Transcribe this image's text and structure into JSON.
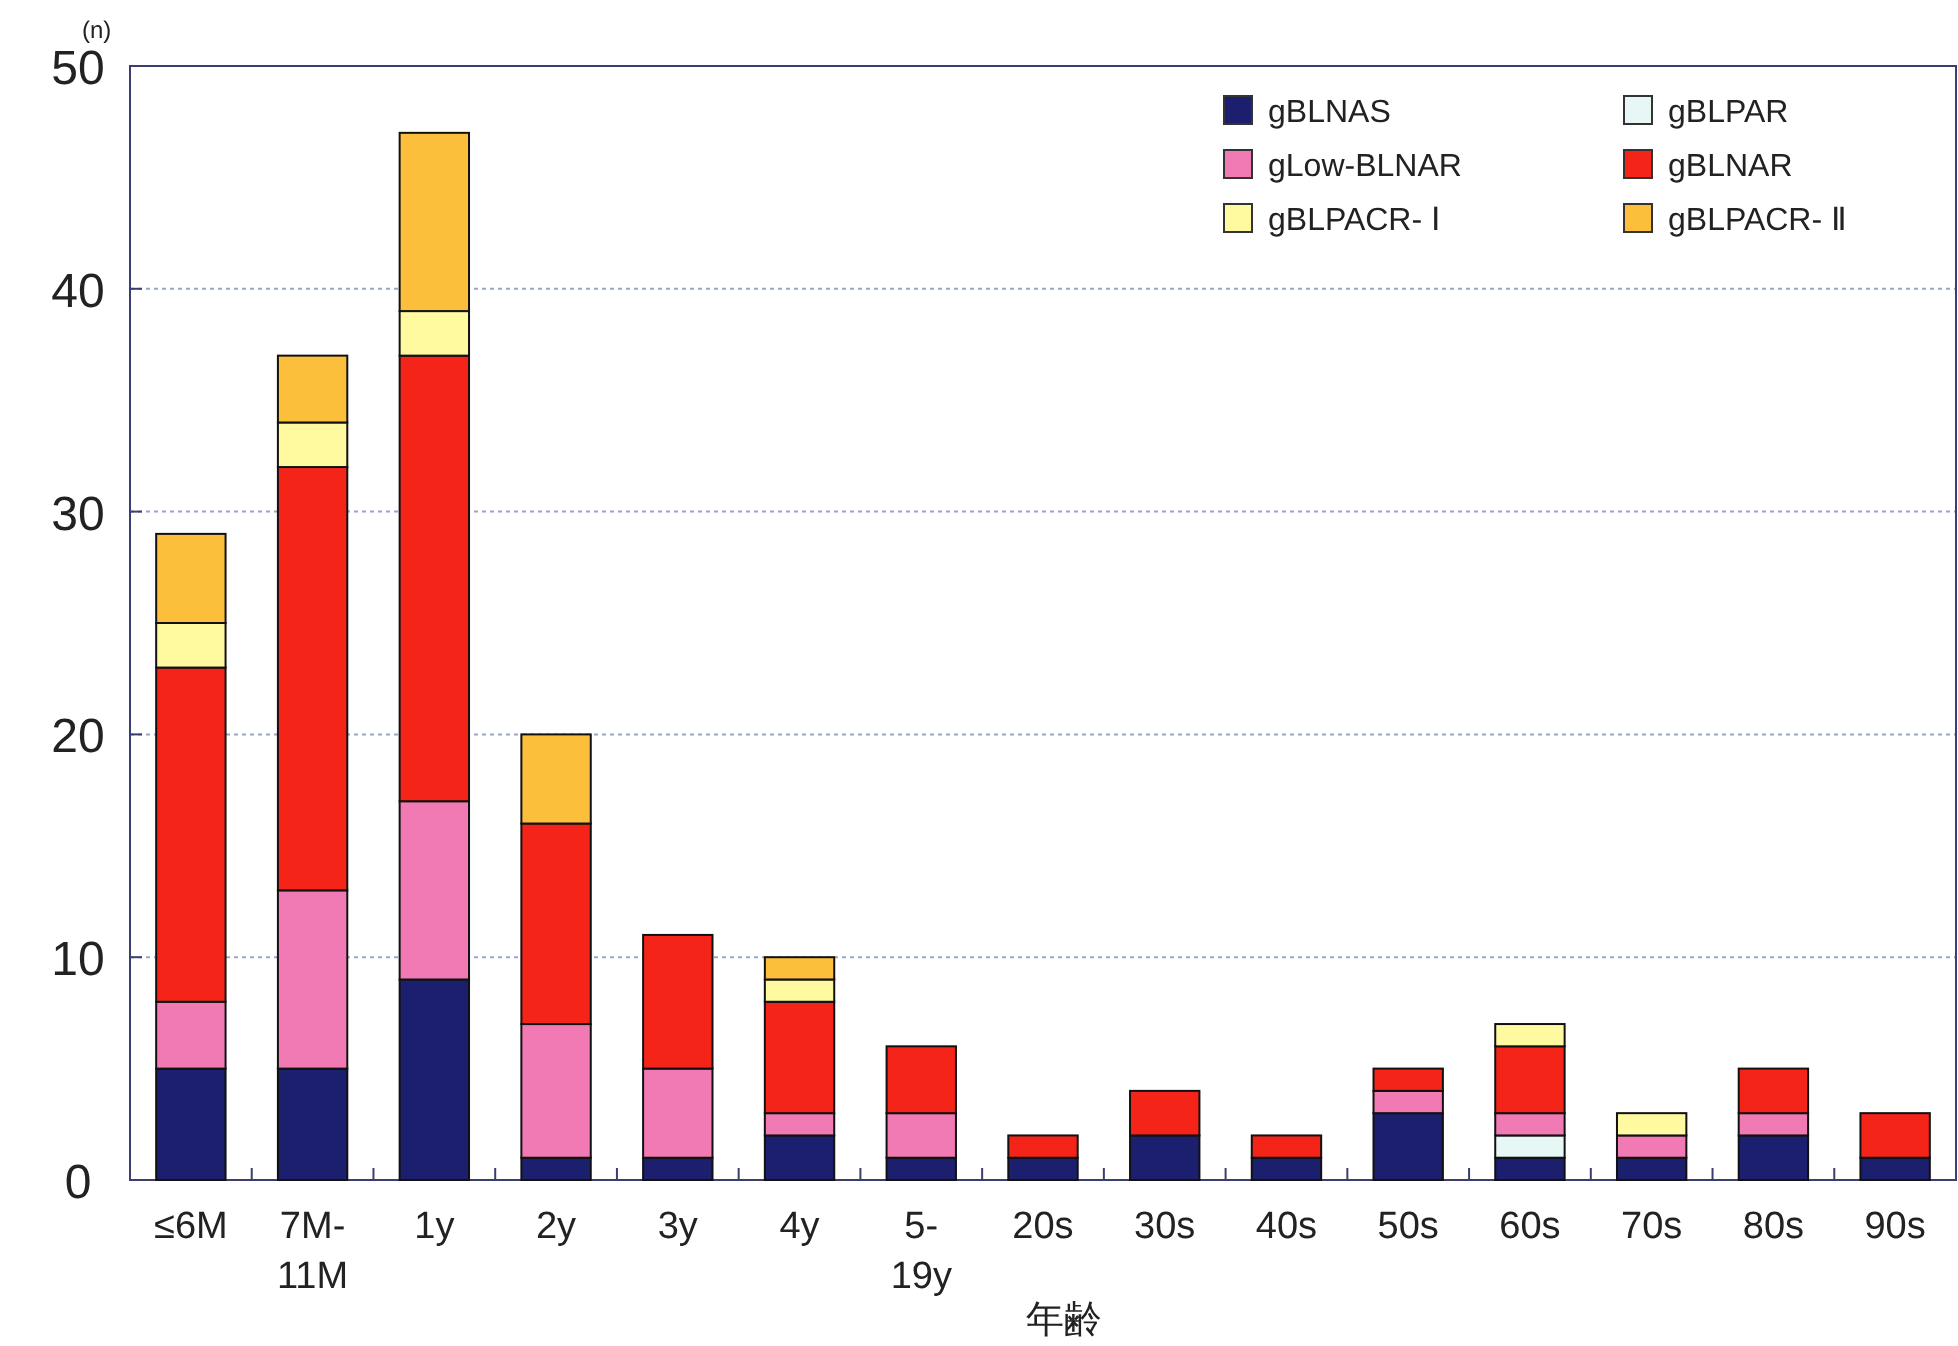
{
  "chart_data": {
    "type": "bar",
    "stacked": true,
    "xlabel": "年齢",
    "ylabel": "(n)",
    "categories": [
      "≤6M",
      "7M-11M",
      "1y",
      "2y",
      "3y",
      "4y",
      "5-19y",
      "20s",
      "30s",
      "40s",
      "50s",
      "60s",
      "70s",
      "80s",
      "90s"
    ],
    "series": [
      {
        "name": "gBLNAS",
        "color": "#1c1f6e",
        "values": [
          5,
          5,
          9,
          1,
          1,
          2,
          1,
          1,
          2,
          1,
          3,
          1,
          1,
          2,
          1
        ]
      },
      {
        "name": "gBLPAR",
        "color": "#e6f7f5",
        "values": [
          0,
          0,
          0,
          0,
          0,
          0,
          0,
          0,
          0,
          0,
          0,
          1,
          0,
          0,
          0
        ]
      },
      {
        "name": "gLow-BLNAR",
        "color": "#f27ab4",
        "values": [
          3,
          8,
          8,
          6,
          4,
          1,
          2,
          0,
          0,
          0,
          1,
          1,
          1,
          1,
          0
        ]
      },
      {
        "name": "gBLNAR",
        "color": "#f52419",
        "values": [
          15,
          19,
          20,
          9,
          6,
          5,
          3,
          1,
          2,
          1,
          1,
          3,
          0,
          2,
          2
        ]
      },
      {
        "name": "gBLPACR- Ⅰ",
        "color": "#fffaa0",
        "values": [
          2,
          2,
          2,
          0,
          0,
          1,
          0,
          0,
          0,
          0,
          0,
          1,
          1,
          0,
          0
        ]
      },
      {
        "name": "gBLPACR- Ⅱ",
        "color": "#fbbf3c",
        "values": [
          4,
          3,
          8,
          4,
          0,
          1,
          0,
          0,
          0,
          0,
          0,
          0,
          0,
          0,
          0
        ]
      }
    ],
    "ylim": [
      0,
      50
    ],
    "yticks": [
      0,
      10,
      20,
      30,
      40,
      50
    ],
    "grid": "y",
    "legend": "top right"
  }
}
